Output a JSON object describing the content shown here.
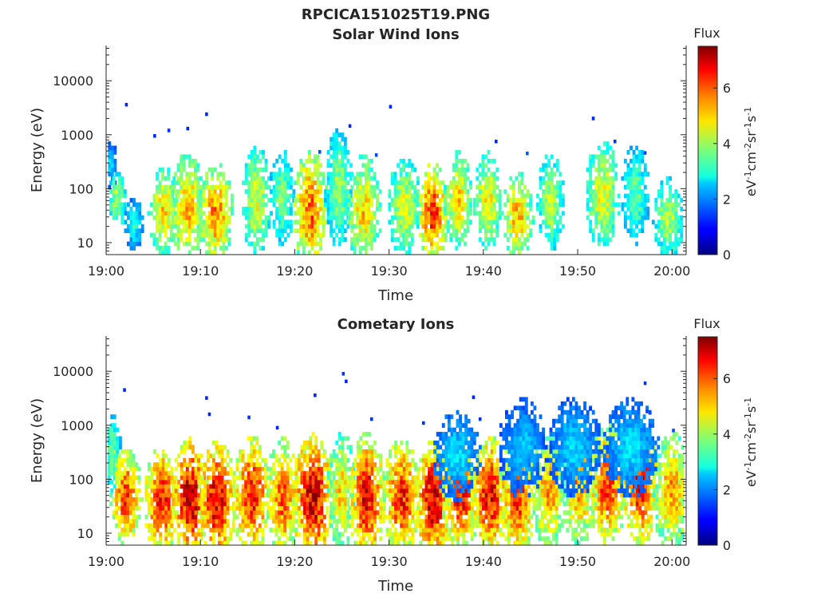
{
  "figure": {
    "title": "RPCICA151025T19.PNG"
  },
  "chart_data": [
    {
      "type": "heatmap",
      "title": "Solar Wind Ions",
      "xlabel": "Time",
      "ylabel": "Energy (eV)",
      "x_ticks": [
        "19:00",
        "19:10",
        "19:20",
        "19:30",
        "19:40",
        "19:50",
        "20:00"
      ],
      "x_range_minutes": [
        0,
        61.5
      ],
      "y_ticks": [
        "10",
        "100",
        "1000",
        "10000"
      ],
      "y_scale": "log",
      "y_range": [
        6,
        45000
      ],
      "colorbar": {
        "title": "Flux",
        "label": "eV-1cm-2sr-1s-1",
        "ticks": [
          "0",
          "2",
          "4",
          "6"
        ],
        "range": [
          0,
          7.5
        ],
        "colormap": "jet"
      },
      "bursts": [
        {
          "t": 0.3,
          "e": 280,
          "v": 2.5,
          "w": 0.4,
          "ew": 0.25
        },
        {
          "t": 1.0,
          "e": 60,
          "v": 4.2,
          "w": 0.5,
          "ew": 0.3
        },
        {
          "t": 2.8,
          "e": 22,
          "v": 3.0,
          "w": 0.6,
          "ew": 0.25
        },
        {
          "t": 6.0,
          "e": 40,
          "v": 5.0,
          "w": 0.9,
          "ew": 0.45
        },
        {
          "t": 8.5,
          "e": 45,
          "v": 5.2,
          "w": 1.0,
          "ew": 0.55
        },
        {
          "t": 11.5,
          "e": 35,
          "v": 5.6,
          "w": 1.0,
          "ew": 0.5
        },
        {
          "t": 15.8,
          "e": 60,
          "v": 4.5,
          "w": 0.8,
          "ew": 0.6
        },
        {
          "t": 18.5,
          "e": 70,
          "v": 3.8,
          "w": 0.7,
          "ew": 0.5
        },
        {
          "t": 21.5,
          "e": 40,
          "v": 5.8,
          "w": 1.0,
          "ew": 0.6
        },
        {
          "t": 24.5,
          "e": 100,
          "v": 4.0,
          "w": 0.8,
          "ew": 0.6
        },
        {
          "t": 27.2,
          "e": 40,
          "v": 5.0,
          "w": 1.0,
          "ew": 0.55
        },
        {
          "t": 31.5,
          "e": 45,
          "v": 4.5,
          "w": 1.0,
          "ew": 0.5
        },
        {
          "t": 34.5,
          "e": 35,
          "v": 6.2,
          "w": 0.9,
          "ew": 0.5
        },
        {
          "t": 37.2,
          "e": 60,
          "v": 5.0,
          "w": 0.8,
          "ew": 0.5
        },
        {
          "t": 40.3,
          "e": 60,
          "v": 4.8,
          "w": 0.8,
          "ew": 0.5
        },
        {
          "t": 43.5,
          "e": 30,
          "v": 5.2,
          "w": 0.9,
          "ew": 0.45
        },
        {
          "t": 47.0,
          "e": 55,
          "v": 4.2,
          "w": 0.8,
          "ew": 0.5
        },
        {
          "t": 52.5,
          "e": 80,
          "v": 4.6,
          "w": 1.0,
          "ew": 0.55
        },
        {
          "t": 56.0,
          "e": 80,
          "v": 3.6,
          "w": 0.8,
          "ew": 0.5
        },
        {
          "t": 59.5,
          "e": 30,
          "v": 4.2,
          "w": 0.9,
          "ew": 0.4
        }
      ],
      "dots": [
        {
          "t": 2.0,
          "e": 3600,
          "v": 1.2
        },
        {
          "t": 5.0,
          "e": 950,
          "v": 1.2
        },
        {
          "t": 6.5,
          "e": 1200,
          "v": 1.3
        },
        {
          "t": 8.5,
          "e": 1300,
          "v": 1.2
        },
        {
          "t": 10.5,
          "e": 2400,
          "v": 1.2
        },
        {
          "t": 25.7,
          "e": 1450,
          "v": 1.2
        },
        {
          "t": 30.0,
          "e": 3300,
          "v": 1.2
        },
        {
          "t": 41.2,
          "e": 750,
          "v": 1.2
        },
        {
          "t": 51.5,
          "e": 2000,
          "v": 1.2
        },
        {
          "t": 53.8,
          "e": 750,
          "v": 1.3
        },
        {
          "t": 57.0,
          "e": 460,
          "v": 1.4
        },
        {
          "t": 22.5,
          "e": 480,
          "v": 1.5
        },
        {
          "t": 28.5,
          "e": 420,
          "v": 1.5
        },
        {
          "t": 44.5,
          "e": 450,
          "v": 1.6
        }
      ]
    },
    {
      "type": "heatmap",
      "title": "Cometary Ions",
      "xlabel": "Time",
      "ylabel": "Energy (eV)",
      "x_ticks": [
        "19:00",
        "19:10",
        "19:20",
        "19:30",
        "19:40",
        "19:50",
        "20:00"
      ],
      "x_range_minutes": [
        0,
        61.5
      ],
      "y_ticks": [
        "10",
        "100",
        "1000",
        "10000"
      ],
      "y_scale": "log",
      "y_range": [
        6,
        45000
      ],
      "colorbar": {
        "title": "Flux",
        "label": "eV-1cm-2sr-1s-1",
        "ticks": [
          "0",
          "2",
          "4",
          "6"
        ],
        "range": [
          0,
          7.5
        ],
        "colormap": "jet"
      },
      "bursts": [
        {
          "t": 0.5,
          "e": 300,
          "v": 3.8,
          "w": 0.5,
          "ew": 0.4
        },
        {
          "t": 2.0,
          "e": 45,
          "v": 6.2,
          "w": 0.9,
          "ew": 0.5
        },
        {
          "t": 5.7,
          "e": 40,
          "v": 6.5,
          "w": 1.0,
          "ew": 0.55
        },
        {
          "t": 8.8,
          "e": 45,
          "v": 7.0,
          "w": 1.1,
          "ew": 0.6
        },
        {
          "t": 11.6,
          "e": 40,
          "v": 6.8,
          "w": 1.1,
          "ew": 0.6
        },
        {
          "t": 15.3,
          "e": 50,
          "v": 6.5,
          "w": 1.1,
          "ew": 0.6
        },
        {
          "t": 18.6,
          "e": 45,
          "v": 6.0,
          "w": 1.0,
          "ew": 0.6
        },
        {
          "t": 21.8,
          "e": 45,
          "v": 6.9,
          "w": 1.2,
          "ew": 0.65
        },
        {
          "t": 24.8,
          "e": 60,
          "v": 5.0,
          "w": 0.8,
          "ew": 0.6
        },
        {
          "t": 27.5,
          "e": 45,
          "v": 6.6,
          "w": 1.1,
          "ew": 0.65
        },
        {
          "t": 31.2,
          "e": 45,
          "v": 6.3,
          "w": 1.1,
          "ew": 0.6
        },
        {
          "t": 34.5,
          "e": 40,
          "v": 7.0,
          "w": 1.0,
          "ew": 0.6
        },
        {
          "t": 37.5,
          "e": 55,
          "v": 6.4,
          "w": 1.1,
          "ew": 0.6
        },
        {
          "t": 40.5,
          "e": 50,
          "v": 6.6,
          "w": 1.1,
          "ew": 0.6
        },
        {
          "t": 43.5,
          "e": 45,
          "v": 6.2,
          "w": 1.1,
          "ew": 0.6
        },
        {
          "t": 46.8,
          "e": 60,
          "v": 5.5,
          "w": 1.0,
          "ew": 0.6
        },
        {
          "t": 50.0,
          "e": 80,
          "v": 5.6,
          "w": 1.1,
          "ew": 0.6
        },
        {
          "t": 53.0,
          "e": 80,
          "v": 6.2,
          "w": 1.2,
          "ew": 0.6
        },
        {
          "t": 56.5,
          "e": 80,
          "v": 6.6,
          "w": 1.1,
          "ew": 0.6
        },
        {
          "t": 59.8,
          "e": 60,
          "v": 5.4,
          "w": 1.1,
          "ew": 0.6
        },
        {
          "t": 37.0,
          "e": 280,
          "v": 2.6,
          "w": 1.4,
          "ew": 0.45
        },
        {
          "t": 44.0,
          "e": 380,
          "v": 2.4,
          "w": 1.4,
          "ew": 0.5
        },
        {
          "t": 49.5,
          "e": 400,
          "v": 2.5,
          "w": 1.6,
          "ew": 0.5
        },
        {
          "t": 55.5,
          "e": 380,
          "v": 2.6,
          "w": 1.6,
          "ew": 0.5
        }
      ],
      "dots": [
        {
          "t": 1.8,
          "e": 4500,
          "v": 1.2
        },
        {
          "t": 10.5,
          "e": 3200,
          "v": 1.2
        },
        {
          "t": 10.8,
          "e": 1600,
          "v": 1.2
        },
        {
          "t": 15.0,
          "e": 1400,
          "v": 1.3
        },
        {
          "t": 18.0,
          "e": 900,
          "v": 1.2
        },
        {
          "t": 22.0,
          "e": 3600,
          "v": 1.2
        },
        {
          "t": 25.0,
          "e": 9000,
          "v": 1.3
        },
        {
          "t": 25.3,
          "e": 6500,
          "v": 1.2
        },
        {
          "t": 28.0,
          "e": 1300,
          "v": 1.3
        },
        {
          "t": 33.5,
          "e": 1100,
          "v": 1.3
        },
        {
          "t": 38.8,
          "e": 3300,
          "v": 1.2
        },
        {
          "t": 39.5,
          "e": 1300,
          "v": 1.3
        },
        {
          "t": 51.2,
          "e": 2000,
          "v": 1.3
        },
        {
          "t": 57.0,
          "e": 6000,
          "v": 1.3
        },
        {
          "t": 57.2,
          "e": 1800,
          "v": 1.4
        },
        {
          "t": 60.0,
          "e": 800,
          "v": 1.5
        }
      ]
    }
  ]
}
